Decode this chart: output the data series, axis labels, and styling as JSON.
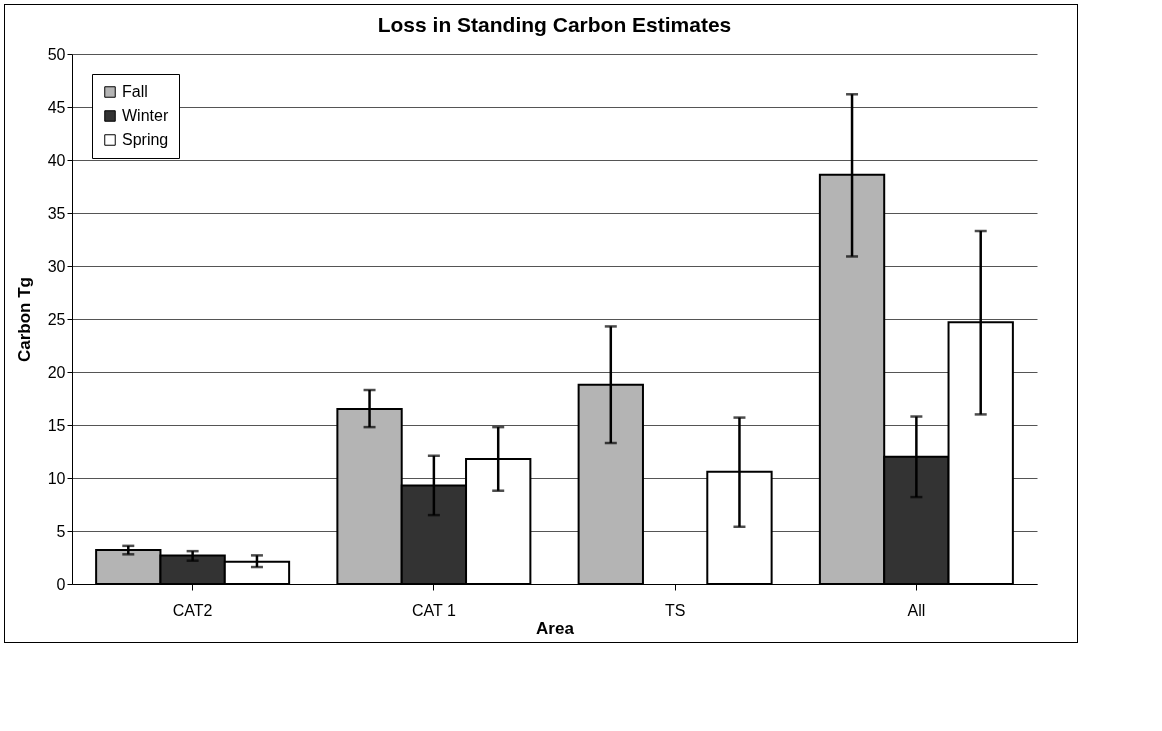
{
  "chart_data": {
    "type": "bar",
    "title": "Loss in Standing Carbon Estimates",
    "xlabel": "Area",
    "ylabel": "Carbon Tg",
    "categories": [
      "CAT2",
      "CAT 1",
      "TS",
      "All"
    ],
    "series": [
      {
        "name": "Fall",
        "color": "#b4b4b4",
        "values": [
          3.2,
          16.5,
          18.8,
          38.6
        ],
        "errors": [
          [
            2.8,
            3.6
          ],
          [
            14.8,
            18.3
          ],
          [
            13.3,
            24.3
          ],
          [
            30.9,
            46.2
          ]
        ]
      },
      {
        "name": "Winter",
        "color": "#333333",
        "values": [
          2.7,
          9.3,
          null,
          12.0
        ],
        "errors": [
          [
            2.2,
            3.1
          ],
          [
            6.5,
            12.1
          ],
          null,
          [
            8.2,
            15.8
          ]
        ]
      },
      {
        "name": "Spring",
        "color": "#ffffff",
        "values": [
          2.1,
          11.8,
          10.6,
          24.7
        ],
        "errors": [
          [
            1.6,
            2.7
          ],
          [
            8.8,
            14.8
          ],
          [
            5.4,
            15.7
          ],
          [
            16.0,
            33.3
          ]
        ]
      }
    ],
    "ylim": [
      0,
      50
    ],
    "yticks": [
      0,
      5,
      10,
      15,
      20,
      25,
      30,
      35,
      40,
      45,
      50
    ],
    "grid": "y",
    "legend": "top left"
  }
}
